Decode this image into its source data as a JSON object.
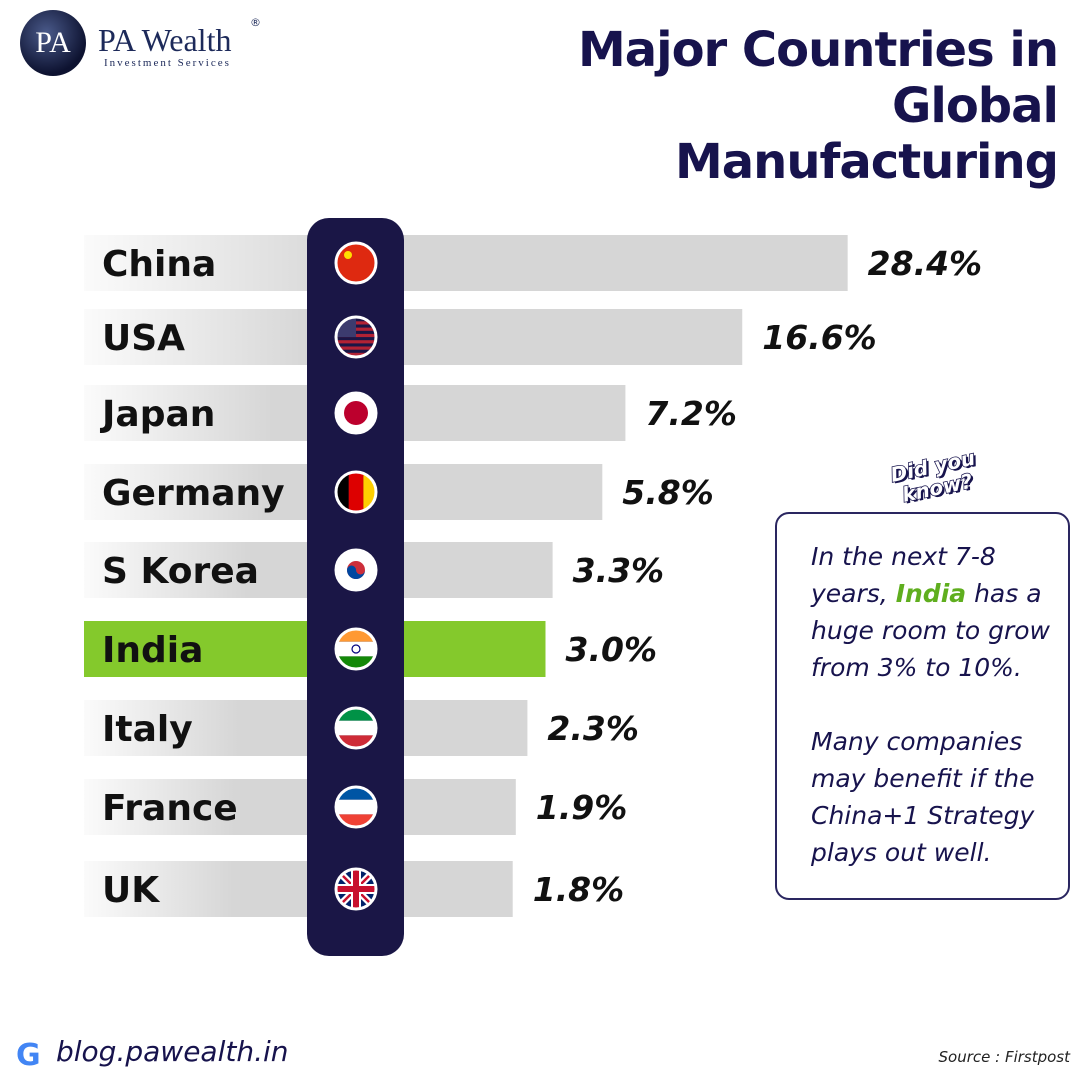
{
  "brand": {
    "monogram": "PA",
    "name": "PA Wealth",
    "mark": "®",
    "tagline": "Investment Services"
  },
  "chart_data": {
    "type": "bar",
    "orientation": "horizontal",
    "title": "Major Countries in Global Manufacturing",
    "categories": [
      "China",
      "USA",
      "Japan",
      "Germany",
      "S Korea",
      "India",
      "Italy",
      "France",
      "UK"
    ],
    "values": [
      28.4,
      16.6,
      7.2,
      5.8,
      3.3,
      3.0,
      2.3,
      1.9,
      1.8
    ],
    "value_labels": [
      "28.4%",
      "16.6%",
      "7.2%",
      "5.8%",
      "3.3%",
      "3.0%",
      "2.3%",
      "1.9%",
      "1.8%"
    ],
    "colors": [
      "#d6d6d6",
      "#d6d6d6",
      "#d6d6d6",
      "#d6d6d6",
      "#d6d6d6",
      "#84c92c",
      "#d6d6d6",
      "#d6d6d6",
      "#d6d6d6"
    ]
  },
  "callout": {
    "badge": "Did you know?",
    "paragraph_1": [
      "In the next 7-8 years, ",
      "India",
      " has a huge room to grow from 3% to 10%."
    ],
    "paragraph_2": "Many companies may benefit if the China+1 Strategy plays out well."
  },
  "footer": {
    "website": "blog.pawealth.in",
    "source": "Source : Firstpost"
  }
}
